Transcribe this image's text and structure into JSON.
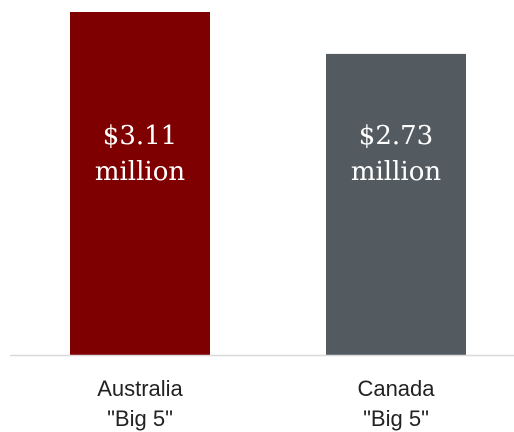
{
  "chart_data": {
    "type": "bar",
    "categories": [
      [
        "Australia",
        "\"Big 5\""
      ],
      [
        "Canada",
        "\"Big 5\""
      ]
    ],
    "values": [
      3.11,
      2.73
    ],
    "data_labels": [
      [
        "$3.11",
        "million"
      ],
      [
        "$2.73",
        "million"
      ]
    ],
    "colors": [
      "#7f0000",
      "#535b60"
    ],
    "baseline_color": "#d9d9d9",
    "ylim": [
      0,
      3.11
    ],
    "title": "",
    "xlabel": "",
    "ylabel": "",
    "grid": false,
    "legend": "none"
  }
}
